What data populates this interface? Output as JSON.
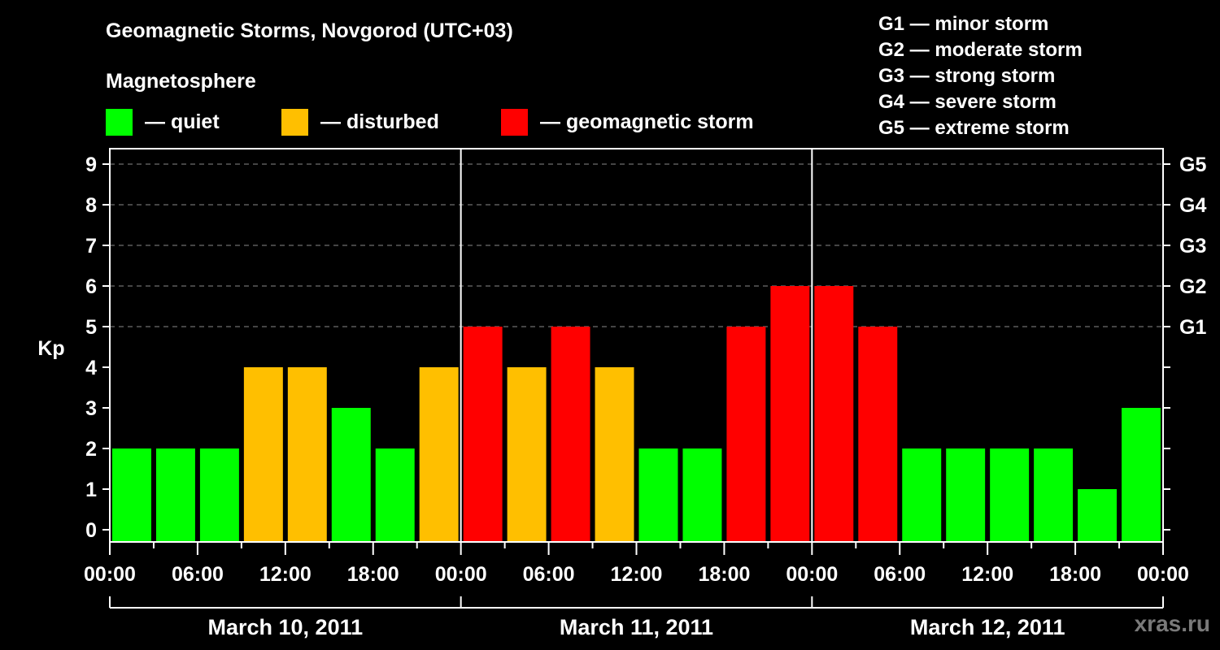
{
  "header": {
    "title": "Geomagnetic Storms, Novgorod (UTC+03)",
    "subtitle": "Magnetosphere"
  },
  "legend": [
    {
      "label": "— quiet",
      "color": "#00ff00"
    },
    {
      "label": "— disturbed",
      "color": "#ffbf00"
    },
    {
      "label": "— geomagnetic storm",
      "color": "#ff0000"
    }
  ],
  "g_scale_legend": [
    "G1 — minor storm",
    "G2 — moderate storm",
    "G3 — strong storm",
    "G4 — severe storm",
    "G5 — extreme storm"
  ],
  "watermark": "xras.ru",
  "chart_data": {
    "type": "bar",
    "title": "Geomagnetic Storms, Novgorod (UTC+03)",
    "xlabel": "",
    "ylabel": "Kp",
    "ylim": [
      0,
      9
    ],
    "grid": "dashed horizontal at Kp 5-9",
    "y_ticks": [
      0,
      1,
      2,
      3,
      4,
      5,
      6,
      7,
      8,
      9
    ],
    "right_axis_labels": [
      {
        "kp": 5,
        "label": "G1"
      },
      {
        "kp": 6,
        "label": "G2"
      },
      {
        "kp": 7,
        "label": "G3"
      },
      {
        "kp": 8,
        "label": "G4"
      },
      {
        "kp": 9,
        "label": "G5"
      }
    ],
    "x_tick_labels": [
      "00:00",
      "06:00",
      "12:00",
      "18:00",
      "00:00",
      "06:00",
      "12:00",
      "18:00",
      "00:00",
      "06:00",
      "12:00",
      "18:00",
      "00:00"
    ],
    "days": [
      "March 10, 2011",
      "March 11, 2011",
      "March 12, 2011"
    ],
    "categories": [
      "Mar10 00-03",
      "Mar10 03-06",
      "Mar10 06-09",
      "Mar10 09-12",
      "Mar10 12-15",
      "Mar10 15-18",
      "Mar10 18-21",
      "Mar10 21-24",
      "Mar11 00-03",
      "Mar11 03-06",
      "Mar11 06-09",
      "Mar11 09-12",
      "Mar11 12-15",
      "Mar11 15-18",
      "Mar11 18-21",
      "Mar11 21-24",
      "Mar12 00-03",
      "Mar12 03-06",
      "Mar12 06-09",
      "Mar12 09-12",
      "Mar12 12-15",
      "Mar12 15-18",
      "Mar12 18-21",
      "Mar12 21-24"
    ],
    "values": [
      2,
      2,
      2,
      4,
      4,
      3,
      2,
      4,
      5,
      4,
      5,
      4,
      2,
      2,
      5,
      6,
      6,
      5,
      2,
      2,
      2,
      2,
      1,
      3
    ],
    "color_rule": {
      "quiet": "Kp<=3 #00ff00",
      "disturbed": "Kp=4 #ffbf00",
      "storm": "Kp>=5 #ff0000"
    },
    "legend_position": "top"
  }
}
